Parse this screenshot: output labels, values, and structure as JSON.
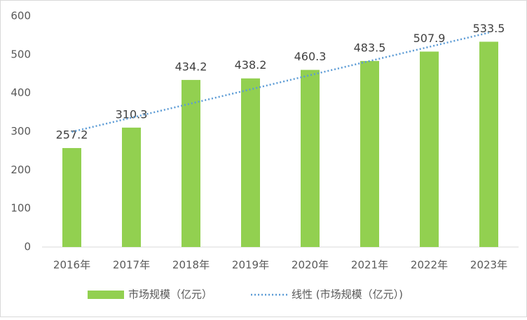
{
  "chart_data": {
    "type": "bar",
    "categories": [
      "2016年",
      "2017年",
      "2018年",
      "2019年",
      "2020年",
      "2021年",
      "2022年",
      "2023年"
    ],
    "series": [
      {
        "name": "市场规模（亿元）",
        "color": "#92d050",
        "values": [
          257.2,
          310.3,
          434.2,
          438.2,
          460.3,
          483.5,
          507.9,
          533.5
        ]
      },
      {
        "name": "线性 (市场规模（亿元）)",
        "type": "line",
        "color": "#5b9bd5",
        "values": [
          299.3,
          336.1,
          372.9,
          409.7,
          446.6,
          483.4,
          520.2,
          557.0
        ]
      }
    ],
    "ylim": [
      0,
      600
    ],
    "yticks": [
      0,
      100,
      200,
      300,
      400,
      500,
      600
    ],
    "grid": false,
    "legend": "bottom"
  }
}
